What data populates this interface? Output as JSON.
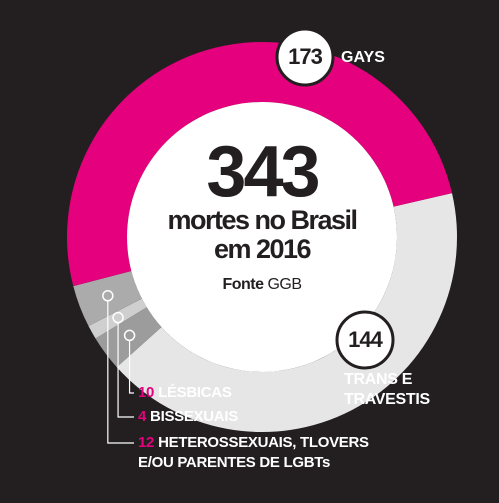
{
  "chart_data": {
    "type": "donut",
    "total": 343,
    "title_lines": [
      "mortes no Brasil",
      "em 2016"
    ],
    "source_label": "Fonte",
    "source": "GGB",
    "categories": [
      "GAYS",
      "TRANS E TRAVESTIS",
      "LÉSBICAS",
      "BISSEXUAIS",
      "HETEROSSEXUAIS, TLOVERS E/OU PARENTES DE LGBTs"
    ],
    "values": [
      173,
      144,
      10,
      4,
      12
    ],
    "colors": [
      "#e5007d",
      "#e6e6e6",
      "#9c9c9c",
      "#cfcfcf",
      "#ababab"
    ]
  }
}
